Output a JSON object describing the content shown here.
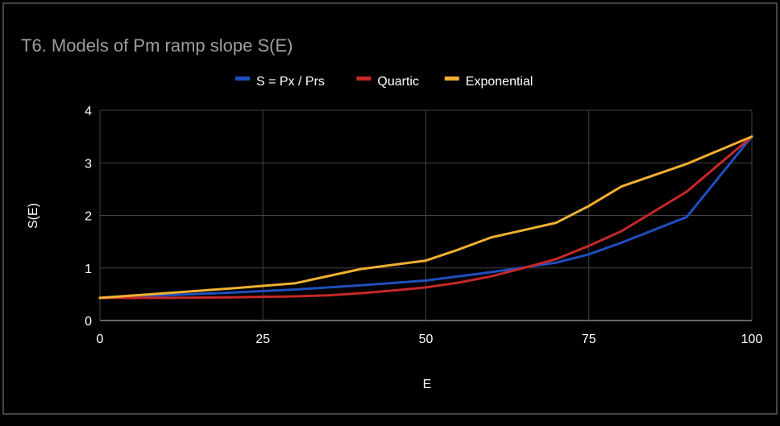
{
  "chart_data": {
    "type": "line",
    "title": "T6. Models of Pm ramp slope S(E)",
    "xlabel": "E",
    "ylabel": "S(E)",
    "xlim": [
      0,
      100
    ],
    "ylim": [
      0,
      4
    ],
    "xticks": [
      "0",
      "25",
      "50",
      "75",
      "100"
    ],
    "yticks": [
      "0",
      "1",
      "2",
      "3",
      "4"
    ],
    "xtick_values": [
      0,
      25,
      50,
      75,
      100
    ],
    "ytick_values": [
      0,
      1,
      2,
      3,
      4
    ],
    "grid": true,
    "legend_position": "top-center",
    "series": [
      {
        "name": "S = Px / Prs",
        "color": "#1f4fbf",
        "x": [
          0,
          10,
          20,
          30,
          40,
          50,
          60,
          70,
          75,
          80,
          90,
          100
        ],
        "y": [
          0.43,
          0.48,
          0.53,
          0.59,
          0.67,
          0.76,
          0.92,
          1.1,
          1.26,
          1.48,
          1.97,
          3.5
        ]
      },
      {
        "name": "Quartic",
        "color": "#c62828",
        "x": [
          0,
          10,
          20,
          30,
          35,
          40,
          45,
          50,
          55,
          60,
          65,
          70,
          75,
          80,
          90,
          100
        ],
        "y": [
          0.43,
          0.43,
          0.44,
          0.46,
          0.48,
          0.52,
          0.57,
          0.63,
          0.72,
          0.84,
          1.0,
          1.17,
          1.42,
          1.7,
          2.45,
          3.5
        ]
      },
      {
        "name": "Exponential",
        "color": "#f0b030",
        "x": [
          0,
          10,
          20,
          30,
          40,
          50,
          55,
          60,
          70,
          75,
          80,
          90,
          100
        ],
        "y": [
          0.43,
          0.52,
          0.61,
          0.71,
          0.98,
          1.14,
          1.35,
          1.58,
          1.86,
          2.18,
          2.55,
          2.98,
          3.5
        ]
      }
    ]
  }
}
